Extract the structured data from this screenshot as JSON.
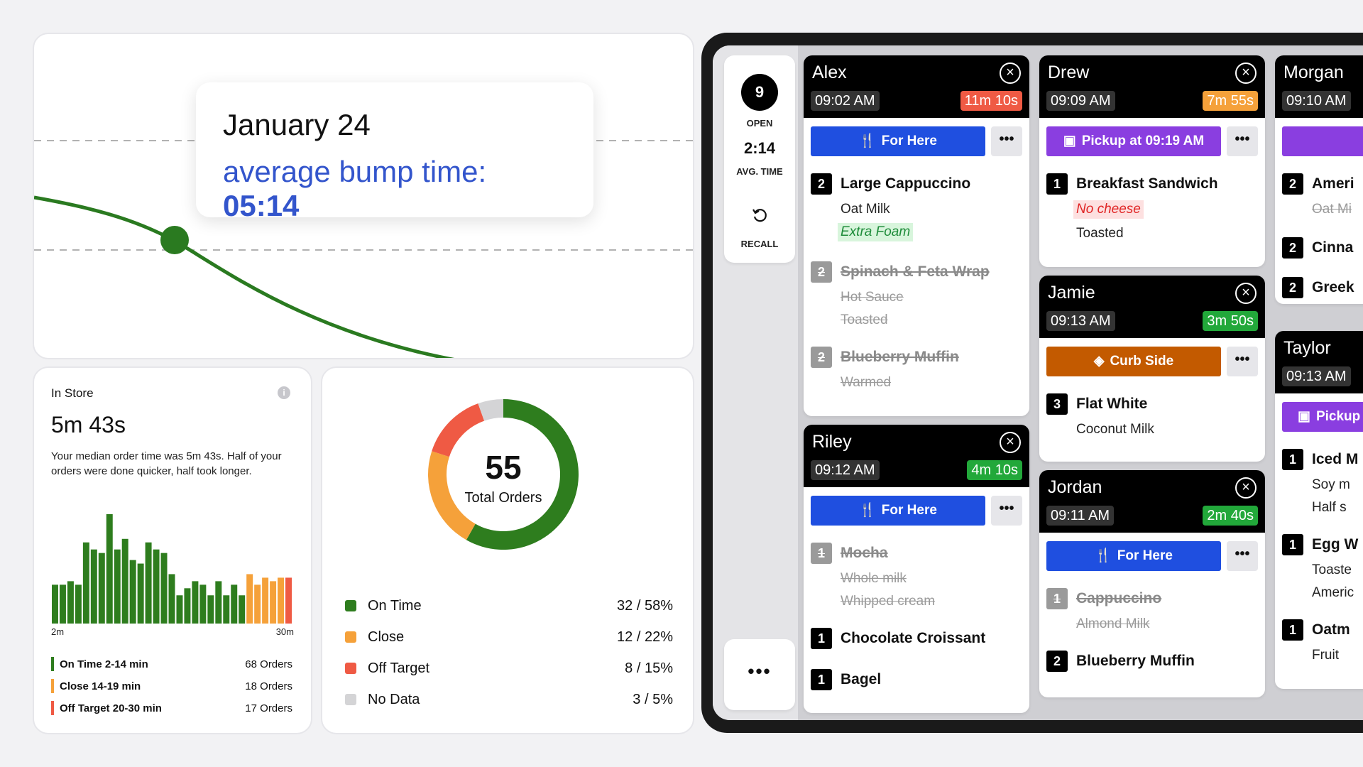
{
  "trend": {
    "date": "January 24",
    "bump_label": "average bump time: ",
    "bump_value": "05:14"
  },
  "in_store": {
    "label": "In Store",
    "value": "5m 43s",
    "description": "Your median order time was 5m 43s. Half of your orders were done quicker, half took longer.",
    "info_glyph": "i",
    "histogram": {
      "x_start": "2m",
      "x_end": "30m",
      "values": [
        22,
        22,
        24,
        22,
        46,
        42,
        40,
        62,
        42,
        48,
        36,
        34,
        46,
        42,
        40,
        28,
        16,
        20,
        24,
        22,
        16,
        24,
        16,
        22,
        16,
        28,
        22,
        26,
        24,
        26,
        26
      ],
      "categories": [
        "green",
        "green",
        "green",
        "green",
        "green",
        "green",
        "green",
        "green",
        "green",
        "green",
        "green",
        "green",
        "green",
        "green",
        "green",
        "green",
        "green",
        "green",
        "green",
        "green",
        "green",
        "green",
        "green",
        "green",
        "green",
        "orange",
        "orange",
        "orange",
        "orange",
        "orange",
        "red"
      ]
    },
    "legend": [
      {
        "label": "On Time 2-14 min",
        "count": "68 Orders",
        "color": "#2e7d1e"
      },
      {
        "label": "Close 14-19 min",
        "count": "18 Orders",
        "color": "#f5a13a"
      },
      {
        "label": "Off Target 20-30 min",
        "count": "17 Orders",
        "color": "#ef5a44"
      }
    ]
  },
  "totals": {
    "total": "55",
    "total_label": "Total Orders",
    "chart_data": {
      "type": "pie",
      "categories": [
        "On Time",
        "Close",
        "Off Target",
        "No Data"
      ],
      "values": [
        32,
        12,
        8,
        3
      ],
      "colors": [
        "#2e7d1e",
        "#f5a13a",
        "#ef5a44",
        "#d4d4d6"
      ]
    },
    "legend": [
      {
        "label": "On Time",
        "value": "32 / 58%",
        "color": "#2e7d1e"
      },
      {
        "label": "Close",
        "value": "12 / 22%",
        "color": "#f5a13a"
      },
      {
        "label": "Off Target",
        "value": "8 / 15%",
        "color": "#ef5a44"
      },
      {
        "label": "No Data",
        "value": "3 / 5%",
        "color": "#d4d4d6"
      }
    ]
  },
  "sidebar": {
    "open_count": "9",
    "open_label": "OPEN",
    "avg_time": "2:14",
    "avg_label": "AVG. TIME",
    "recall_label": "RECALL",
    "more": "•••"
  },
  "orders": {
    "alex": {
      "name": "Alex",
      "time": "09:02 AM",
      "timer": "11m 10s",
      "timer_color": "#ef5a44",
      "mode": "For Here",
      "mode_color": "#1f4fe0",
      "mode_icon": "utensils-icon",
      "items": [
        {
          "qty": "2",
          "name": "Large Cappuccino",
          "mods": [
            "Oat Milk"
          ],
          "highlight": "Extra Foam"
        },
        {
          "qty": "2",
          "name": "Spinach & Feta Wrap",
          "mods": [
            "Hot Sauce",
            "Toasted"
          ]
        },
        {
          "qty": "2",
          "name": "Blueberry Muffin",
          "mods": [
            "Warmed"
          ]
        }
      ]
    },
    "riley": {
      "name": "Riley",
      "time": "09:12 AM",
      "timer": "4m 10s",
      "timer_color": "#22a83a",
      "mode": "For Here",
      "mode_color": "#1f4fe0",
      "items": [
        {
          "qty": "1",
          "name": "Mocha",
          "mods": [
            "Whole milk",
            "Whipped cream"
          ]
        },
        {
          "qty": "1",
          "name": "Chocolate Croissant"
        },
        {
          "qty": "1",
          "name": "Bagel"
        }
      ]
    },
    "drew": {
      "name": "Drew",
      "time": "09:09 AM",
      "timer": "7m 55s",
      "timer_color": "#f5a13a",
      "mode": "Pickup at 09:19 AM",
      "mode_color": "#8a3ee0",
      "items": [
        {
          "qty": "1",
          "name": "Breakfast Sandwich",
          "highlight": "No cheese",
          "mods": [
            "Toasted"
          ]
        }
      ]
    },
    "jamie": {
      "name": "Jamie",
      "time": "09:13 AM",
      "timer": "3m 50s",
      "timer_color": "#22a83a",
      "mode": "Curb Side",
      "mode_color": "#c35a00",
      "items": [
        {
          "qty": "3",
          "name": "Flat White",
          "mods": [
            "Coconut Milk"
          ]
        }
      ]
    },
    "jordan": {
      "name": "Jordan",
      "time": "09:11 AM",
      "timer": "2m 40s",
      "timer_color": "#22a83a",
      "mode": "For Here",
      "mode_color": "#1f4fe0",
      "items": [
        {
          "qty": "1",
          "name": "Cappuccino",
          "mods": [
            "Almond Milk"
          ]
        },
        {
          "qty": "2",
          "name": "Blueberry Muffin"
        }
      ]
    },
    "morgan": {
      "name": "Morgan",
      "time": "09:10 AM",
      "mode_color": "#8a3ee0",
      "items": [
        {
          "qty": "2",
          "name": "Ameri",
          "mods": [
            "Oat Mi"
          ]
        },
        {
          "qty": "2",
          "name": "Cinna"
        },
        {
          "qty": "2",
          "name": "Greek"
        }
      ]
    },
    "taylor": {
      "name": "Taylor",
      "time": "09:13 AM",
      "mode": "Pickup",
      "mode_color": "#8a3ee0",
      "items": [
        {
          "qty": "1",
          "name": "Iced M",
          "mods": [
            "Soy m",
            "Half s"
          ]
        },
        {
          "qty": "1",
          "name": "Egg W",
          "mods": [
            "Toaste",
            "Americ"
          ]
        },
        {
          "qty": "1",
          "name": "Oatm",
          "mods": [
            "Fruit"
          ]
        }
      ]
    },
    "close_glyph": "×",
    "more_glyph": "•••"
  }
}
